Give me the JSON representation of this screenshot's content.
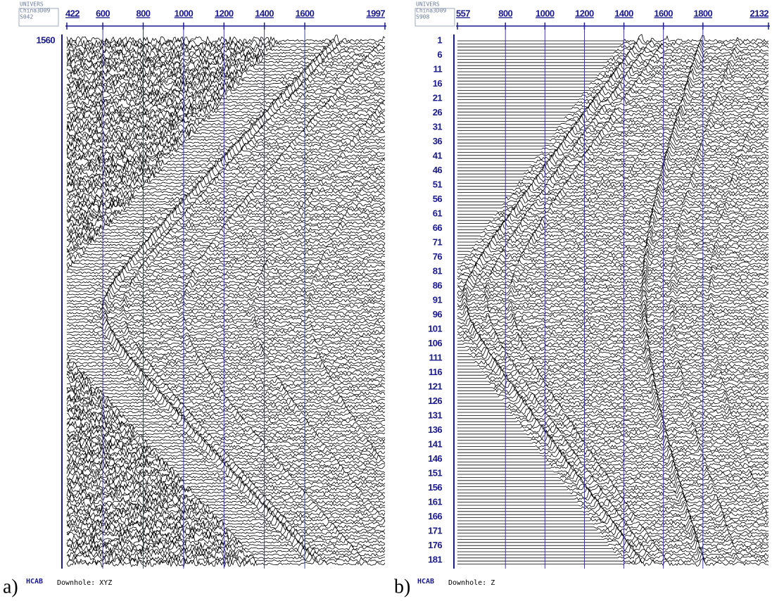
{
  "panels": [
    {
      "tag": "a)",
      "header": [
        "UNIVERS",
        "China3D09",
        "S042"
      ],
      "top_ticks": [
        422,
        600,
        800,
        1000,
        1200,
        1400,
        1600,
        1997
      ],
      "left_labels": [
        "1560"
      ],
      "footer_label": "HCAB",
      "footer_text": "Downhole: XYZ"
    },
    {
      "tag": "b)",
      "header": [
        "UNIVERS",
        "China3D09",
        "S908"
      ],
      "top_ticks": [
        557,
        800,
        1000,
        1200,
        1400,
        1600,
        1800,
        2132
      ],
      "left_labels": [
        "1",
        "6",
        "11",
        "16",
        "21",
        "26",
        "31",
        "36",
        "41",
        "46",
        "51",
        "56",
        "61",
        "66",
        "71",
        "76",
        "81",
        "86",
        "91",
        "96",
        "101",
        "106",
        "111",
        "116",
        "121",
        "126",
        "131",
        "136",
        "141",
        "146",
        "151",
        "156",
        "161",
        "166",
        "171",
        "176",
        "181"
      ],
      "footer_label": "HCAB",
      "footer_text": "Downhole: Z"
    }
  ]
}
